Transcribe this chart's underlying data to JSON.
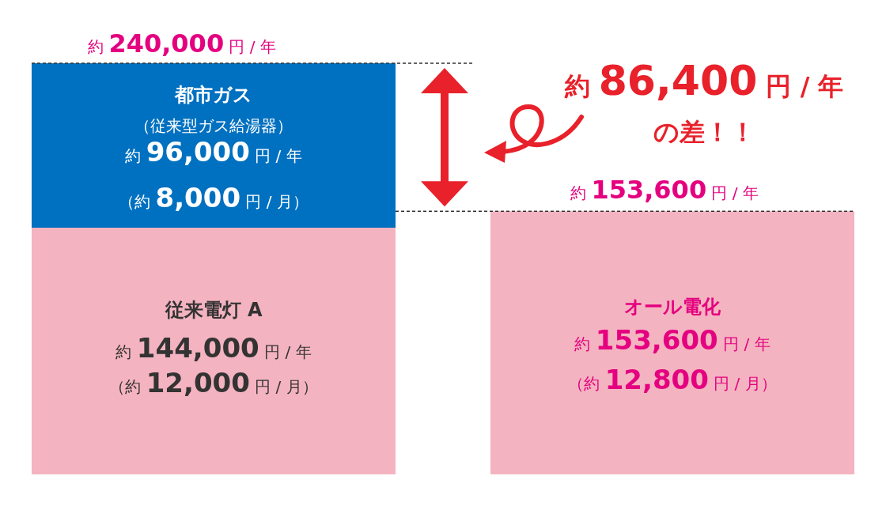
{
  "chart_data": {
    "type": "bar",
    "stacked": true,
    "categories": [
      null,
      null
    ],
    "series": [
      {
        "color": "#f4b3c0",
        "values": [
          144000,
          153600
        ],
        "value_labels": [
          "約 144,000 円 / 年",
          "約 153,600 円 / 年"
        ]
      },
      {
        "color": "#0070c0",
        "values": [
          96000,
          null
        ],
        "value_labels": [
          "約 96,000 円 / 年",
          null
        ]
      }
    ],
    "totals": [
      "約 240,000 円 / 年",
      "約 153,600 円 / 年"
    ],
    "ref_lines": [
      {
        "axis": "y",
        "value": 240000,
        "line_style": "dashed",
        "color": "#333333"
      },
      {
        "axis": "y",
        "value": 153600,
        "line_style": "dashed",
        "color": "#333333"
      }
    ],
    "annotations": [
      "都市ガス",
      "（従来型ガス給湯器）",
      "（約 8,000 円 / 月）",
      "従来電灯 A",
      "（約 12,000 円 / 月）",
      "オール電化",
      "（約 12,800 円 / 月）",
      "約 86,400 円 / 年",
      "の差！！"
    ]
  }
}
